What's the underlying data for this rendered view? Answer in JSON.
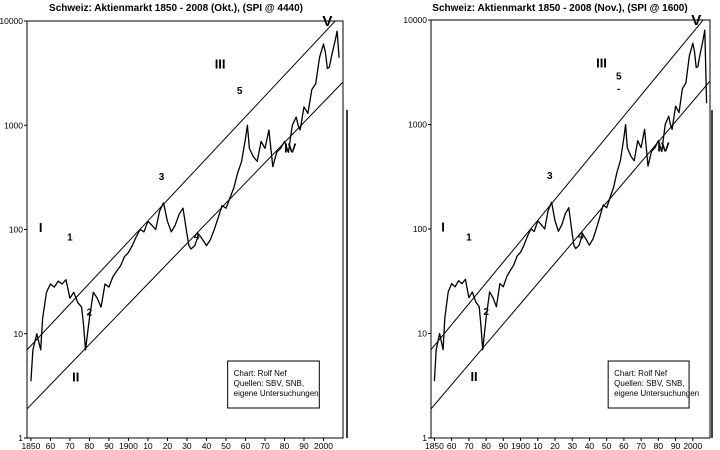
{
  "chart_data": [
    {
      "type": "line",
      "title": "Schweiz: Aktienmarkt 1850 - 2008 (Okt.), (SPI @ 4440)",
      "xlabel": "",
      "ylabel": "",
      "y_scale": "log",
      "xlim": [
        1848,
        2010
      ],
      "ylim": [
        1,
        10000
      ],
      "x_tick_labels": [
        "1850",
        "60",
        "70",
        "80",
        "90",
        "1900",
        "10",
        "20",
        "30",
        "40",
        "50",
        "60",
        "70",
        "80",
        "90",
        "2000"
      ],
      "y_tick_labels": [
        "1",
        "10",
        "100",
        "1000",
        "10000"
      ],
      "grid": false,
      "series": [
        {
          "x": [
            1850,
            1851,
            1853,
            1855,
            1856,
            1858,
            1860,
            1862,
            1864,
            1866,
            1868,
            1870,
            1872,
            1874,
            1876,
            1877,
            1878,
            1880,
            1882,
            1884,
            1886,
            1888,
            1890,
            1892,
            1894,
            1896,
            1898,
            1900,
            1902,
            1904,
            1906,
            1908,
            1910,
            1912,
            1914,
            1916,
            1918,
            1920,
            1922,
            1924,
            1926,
            1928,
            1930,
            1931,
            1932,
            1934,
            1936,
            1938,
            1940,
            1942,
            1944,
            1946,
            1948,
            1950,
            1952,
            1954,
            1956,
            1958,
            1960,
            1961,
            1962,
            1964,
            1966,
            1968,
            1970,
            1972,
            1974,
            1976,
            1978,
            1980,
            1982,
            1984,
            1986,
            1987,
            1988,
            1990,
            1992,
            1994,
            1996,
            1998,
            2000,
            2001,
            2002,
            2003,
            2004,
            2006,
            2007,
            2008
          ],
          "values": [
            3.5,
            7,
            10,
            7,
            14,
            25,
            30,
            28,
            32,
            30,
            33,
            22,
            25,
            20,
            18,
            12,
            7,
            14,
            25,
            22,
            18,
            30,
            28,
            35,
            40,
            45,
            55,
            60,
            70,
            85,
            100,
            95,
            120,
            110,
            100,
            150,
            180,
            120,
            95,
            110,
            140,
            160,
            90,
            70,
            65,
            70,
            90,
            80,
            70,
            80,
            100,
            130,
            170,
            160,
            200,
            250,
            350,
            450,
            750,
            1000,
            600,
            500,
            450,
            700,
            600,
            900,
            400,
            550,
            600,
            700,
            550,
            1000,
            1200,
            1000,
            900,
            1500,
            1300,
            2200,
            2500,
            4500,
            6000,
            5000,
            3500,
            3600,
            4500,
            6500,
            8000,
            4440
          ]
        }
      ],
      "channel_lines": [
        {
          "x": [
            1848,
            2010
          ],
          "values": [
            7,
            12000
          ]
        },
        {
          "x": [
            1848,
            2010
          ],
          "values": [
            1.9,
            2600
          ]
        }
      ],
      "annotations": [
        {
          "text": "V",
          "x": 2002,
          "y": 9000
        },
        {
          "text": "III",
          "x": 1947,
          "y": 3500
        },
        {
          "text": "5",
          "x": 1957,
          "y": 2000
        },
        {
          "text": "3",
          "x": 1917,
          "y": 300
        },
        {
          "text": "I",
          "x": 1855,
          "y": 95
        },
        {
          "text": "1",
          "x": 1870,
          "y": 78
        },
        {
          "text": "4",
          "x": 1935,
          "y": 80
        },
        {
          "text": "2",
          "x": 1880,
          "y": 15
        },
        {
          "text": "II",
          "x": 1873,
          "y": 3.5
        },
        {
          "text": "IV",
          "x": 1983,
          "y": 550
        }
      ],
      "notes": [
        "Chart: Rolf Nef",
        "Quellen: SBV, SNB,",
        "eigene Untersuchungen"
      ]
    },
    {
      "type": "line",
      "title": "Schweiz: Aktienmarkt 1850 - 2008 (Nov.), (SPI @ 1600)",
      "xlabel": "",
      "ylabel": "",
      "y_scale": "log",
      "xlim": [
        1848,
        2010
      ],
      "ylim": [
        1,
        10000
      ],
      "x_tick_labels": [
        "1850",
        "60",
        "70",
        "80",
        "90",
        "1900",
        "10",
        "20",
        "30",
        "40",
        "50",
        "60",
        "70",
        "80",
        "90",
        "2000"
      ],
      "y_tick_labels": [
        "1",
        "10",
        "100",
        "1000",
        "10000"
      ],
      "grid": false,
      "series": [
        {
          "x": [
            1850,
            1851,
            1853,
            1855,
            1856,
            1858,
            1860,
            1862,
            1864,
            1866,
            1868,
            1870,
            1872,
            1874,
            1876,
            1877,
            1878,
            1880,
            1882,
            1884,
            1886,
            1888,
            1890,
            1892,
            1894,
            1896,
            1898,
            1900,
            1902,
            1904,
            1906,
            1908,
            1910,
            1912,
            1914,
            1916,
            1918,
            1920,
            1922,
            1924,
            1926,
            1928,
            1930,
            1931,
            1932,
            1934,
            1936,
            1938,
            1940,
            1942,
            1944,
            1946,
            1948,
            1950,
            1952,
            1954,
            1956,
            1958,
            1960,
            1961,
            1962,
            1964,
            1966,
            1968,
            1970,
            1972,
            1974,
            1976,
            1978,
            1980,
            1982,
            1984,
            1986,
            1987,
            1988,
            1990,
            1992,
            1994,
            1996,
            1998,
            2000,
            2001,
            2002,
            2003,
            2004,
            2006,
            2007,
            2008
          ],
          "values": [
            3.5,
            7,
            10,
            7,
            14,
            25,
            30,
            28,
            32,
            30,
            33,
            22,
            25,
            20,
            18,
            12,
            7,
            14,
            25,
            22,
            18,
            30,
            28,
            35,
            40,
            45,
            55,
            60,
            70,
            85,
            100,
            95,
            120,
            110,
            100,
            150,
            180,
            120,
            95,
            110,
            140,
            160,
            90,
            70,
            65,
            70,
            90,
            80,
            70,
            80,
            100,
            130,
            170,
            160,
            200,
            250,
            350,
            450,
            750,
            1000,
            600,
            500,
            450,
            700,
            600,
            900,
            400,
            550,
            600,
            700,
            550,
            1000,
            1200,
            1000,
            900,
            1500,
            1300,
            2200,
            2500,
            4500,
            6000,
            5000,
            3500,
            3600,
            4500,
            6500,
            8000,
            1600
          ]
        }
      ],
      "channel_lines": [
        {
          "x": [
            1848,
            2010
          ],
          "values": [
            7,
            12000
          ]
        },
        {
          "x": [
            1848,
            2010
          ],
          "values": [
            1.9,
            2600
          ]
        }
      ],
      "annotations": [
        {
          "text": "V",
          "x": 2002,
          "y": 9000
        },
        {
          "text": "III",
          "x": 1947,
          "y": 3500
        },
        {
          "text": "5",
          "x": 1957,
          "y": 2700
        },
        {
          "text": "-",
          "x": 1957,
          "y": 2050
        },
        {
          "text": "3",
          "x": 1917,
          "y": 300
        },
        {
          "text": "I",
          "x": 1855,
          "y": 95
        },
        {
          "text": "1",
          "x": 1870,
          "y": 78
        },
        {
          "text": "4",
          "x": 1935,
          "y": 80
        },
        {
          "text": "2",
          "x": 1880,
          "y": 15
        },
        {
          "text": "II",
          "x": 1873,
          "y": 3.5
        },
        {
          "text": "IV",
          "x": 1983,
          "y": 550
        }
      ],
      "notes": [
        "Chart: Rolf Nef",
        "Quellen: SBV, SNB,",
        "eigene Untersuchungen"
      ]
    }
  ]
}
